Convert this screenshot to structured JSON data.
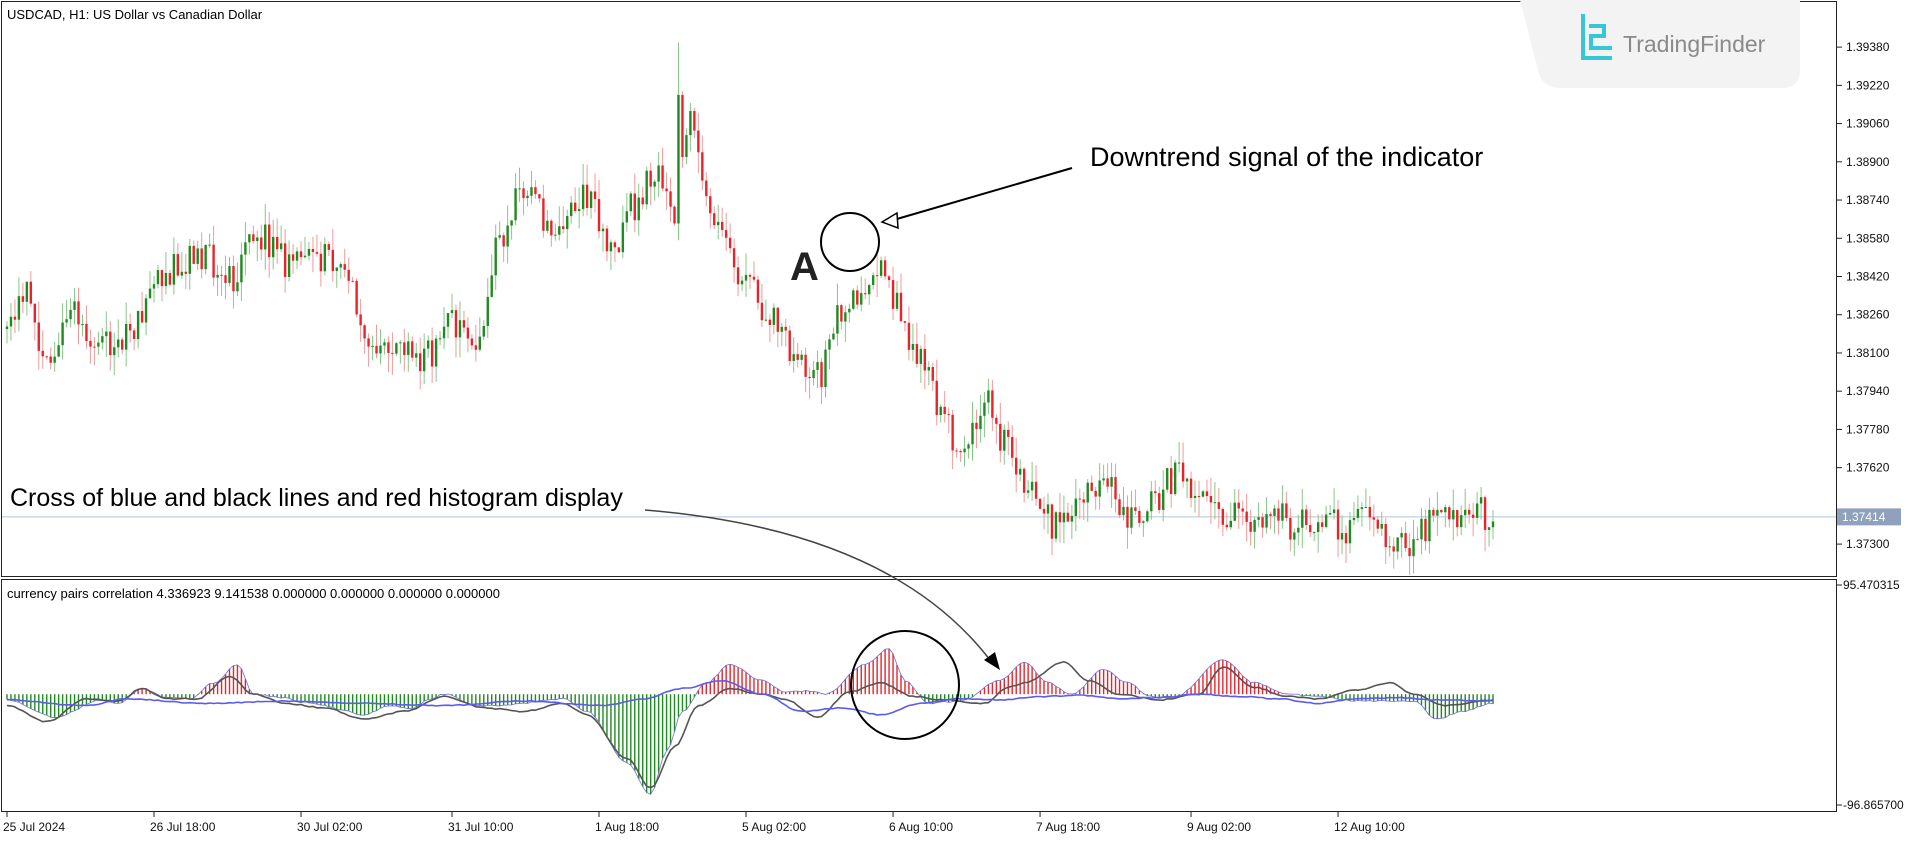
{
  "header": {
    "symbol_title": "USDCAD, H1:  US Dollar vs Canadian Dollar",
    "indicator_title": "currency pairs correlation 4.336923 9.141538 0.000000 0.000000 0.000000 0.000000"
  },
  "brand": {
    "name": "TradingFinder"
  },
  "annotations": {
    "downtrend": "Downtrend signal of the indicator",
    "cross": "Cross of blue and black lines and red histogram display",
    "point_label": "A"
  },
  "colors": {
    "bull": "#1f8a1f",
    "bear": "#e8242a",
    "bull_light": "#86c886",
    "bear_light": "#f29a9a",
    "blue_line": "#5b5bf0",
    "black_line": "#555555",
    "price_line": "#b5c3d6",
    "price_tag_bg": "#8fa1bb",
    "brand_cyan": "#36c6d6"
  },
  "chart_data": [
    {
      "type": "candlestick",
      "symbol": "USDCAD",
      "timeframe": "H1",
      "ylim": [
        1.372,
        1.3946
      ],
      "y_ticks": [
        "1.39380",
        "1.39220",
        "1.39060",
        "1.38900",
        "1.38740",
        "1.38580",
        "1.38420",
        "1.38260",
        "1.38100",
        "1.37940",
        "1.37780",
        "1.37620",
        "1.37300"
      ],
      "current_price": "1.37414",
      "x_tick_labels": [
        "25 Jul 2024",
        "26 Jul 18:00",
        "30 Jul 02:00",
        "31 Jul 10:00",
        "1 Aug 18:00",
        "5 Aug 02:00",
        "6 Aug 10:00",
        "7 Aug 18:00",
        "9 Aug 02:00",
        "12 Aug 10:00"
      ],
      "anchors": [
        [
          0,
          1.382
        ],
        [
          5,
          1.3836
        ],
        [
          10,
          1.3808
        ],
        [
          16,
          1.3826
        ],
        [
          24,
          1.3814
        ],
        [
          32,
          1.382
        ],
        [
          40,
          1.3844
        ],
        [
          48,
          1.3852
        ],
        [
          56,
          1.3842
        ],
        [
          64,
          1.3858
        ],
        [
          72,
          1.3846
        ],
        [
          80,
          1.385
        ],
        [
          86,
          1.3838
        ],
        [
          90,
          1.382
        ],
        [
          96,
          1.3808
        ],
        [
          102,
          1.3808
        ],
        [
          108,
          1.381
        ],
        [
          112,
          1.3822
        ],
        [
          118,
          1.3808
        ],
        [
          124,
          1.3855
        ],
        [
          130,
          1.388
        ],
        [
          138,
          1.3862
        ],
        [
          146,
          1.3876
        ],
        [
          152,
          1.3854
        ],
        [
          158,
          1.3872
        ],
        [
          164,
          1.3888
        ],
        [
          168,
          1.3862
        ],
        [
          172,
          1.3912
        ],
        [
          176,
          1.3876
        ],
        [
          182,
          1.3852
        ],
        [
          186,
          1.3836
        ],
        [
          192,
          1.3828
        ],
        [
          198,
          1.3812
        ],
        [
          204,
          1.38
        ],
        [
          210,
          1.3828
        ],
        [
          216,
          1.384
        ],
        [
          220,
          1.385
        ],
        [
          224,
          1.383
        ],
        [
          230,
          1.3806
        ],
        [
          236,
          1.378
        ],
        [
          240,
          1.3768
        ],
        [
          246,
          1.379
        ],
        [
          252,
          1.377
        ],
        [
          258,
          1.375
        ],
        [
          264,
          1.3738
        ],
        [
          270,
          1.3745
        ],
        [
          276,
          1.376
        ],
        [
          282,
          1.3742
        ],
        [
          288,
          1.3748
        ],
        [
          294,
          1.3758
        ],
        [
          300,
          1.3752
        ],
        [
          306,
          1.3744
        ],
        [
          312,
          1.374
        ],
        [
          318,
          1.3745
        ],
        [
          324,
          1.3738
        ],
        [
          330,
          1.3742
        ],
        [
          336,
          1.3736
        ],
        [
          342,
          1.374
        ],
        [
          348,
          1.3733
        ],
        [
          354,
          1.3728
        ],
        [
          358,
          1.374
        ],
        [
          362,
          1.3744
        ],
        [
          366,
          1.3742
        ],
        [
          370,
          1.3744
        ],
        [
          374,
          1.374
        ]
      ],
      "candle_count": 375
    },
    {
      "type": "histogram_with_lines",
      "name": "currency pairs correlation",
      "ylim": [
        -96.8657,
        95.470315
      ],
      "y_ticks": [
        "95.470315",
        "-96.865700"
      ],
      "histogram_anchors": [
        [
          0,
          -5
        ],
        [
          12,
          -20
        ],
        [
          24,
          -5
        ],
        [
          28,
          -8
        ],
        [
          34,
          5
        ],
        [
          40,
          -3
        ],
        [
          46,
          -4
        ],
        [
          52,
          10
        ],
        [
          58,
          26
        ],
        [
          62,
          0
        ],
        [
          70,
          -3
        ],
        [
          74,
          -7
        ],
        [
          80,
          -10
        ],
        [
          84,
          -14
        ],
        [
          90,
          -18
        ],
        [
          96,
          -10
        ],
        [
          102,
          -13
        ],
        [
          106,
          -5
        ],
        [
          110,
          0
        ],
        [
          118,
          -10
        ],
        [
          125,
          -10
        ],
        [
          130,
          -8
        ],
        [
          136,
          -5
        ],
        [
          140,
          -4
        ],
        [
          146,
          -15
        ],
        [
          156,
          -60
        ],
        [
          162,
          -88
        ],
        [
          166,
          -50
        ],
        [
          170,
          -15
        ],
        [
          176,
          10
        ],
        [
          182,
          26
        ],
        [
          190,
          12
        ],
        [
          196,
          2
        ],
        [
          202,
          3
        ],
        [
          206,
          0
        ],
        [
          216,
          26
        ],
        [
          222,
          40
        ],
        [
          226,
          12
        ],
        [
          232,
          -8
        ],
        [
          240,
          -6
        ],
        [
          250,
          12
        ],
        [
          256,
          28
        ],
        [
          262,
          10
        ],
        [
          268,
          0
        ],
        [
          276,
          22
        ],
        [
          282,
          10
        ],
        [
          288,
          -2
        ],
        [
          294,
          -2
        ],
        [
          306,
          30
        ],
        [
          314,
          10
        ],
        [
          322,
          0
        ],
        [
          330,
          -2
        ],
        [
          340,
          -6
        ],
        [
          354,
          -6
        ],
        [
          360,
          -22
        ],
        [
          366,
          -15
        ],
        [
          374,
          -8
        ]
      ],
      "black_line_anchors": [
        [
          0,
          -10
        ],
        [
          10,
          -24
        ],
        [
          20,
          -4
        ],
        [
          28,
          -6
        ],
        [
          34,
          5
        ],
        [
          40,
          -4
        ],
        [
          48,
          -4
        ],
        [
          56,
          16
        ],
        [
          62,
          0
        ],
        [
          70,
          -8
        ],
        [
          80,
          -12
        ],
        [
          90,
          -22
        ],
        [
          100,
          -15
        ],
        [
          110,
          -2
        ],
        [
          120,
          -12
        ],
        [
          130,
          -15
        ],
        [
          140,
          -8
        ],
        [
          146,
          -18
        ],
        [
          156,
          -56
        ],
        [
          162,
          -82
        ],
        [
          168,
          -46
        ],
        [
          174,
          -10
        ],
        [
          182,
          5
        ],
        [
          190,
          0
        ],
        [
          196,
          -5
        ],
        [
          204,
          -20
        ],
        [
          212,
          2
        ],
        [
          220,
          10
        ],
        [
          228,
          -2
        ],
        [
          236,
          -5
        ],
        [
          246,
          -8
        ],
        [
          252,
          6
        ],
        [
          256,
          10
        ],
        [
          266,
          28
        ],
        [
          272,
          12
        ],
        [
          280,
          0
        ],
        [
          290,
          -5
        ],
        [
          300,
          0
        ],
        [
          306,
          24
        ],
        [
          314,
          6
        ],
        [
          322,
          -2
        ],
        [
          330,
          -4
        ],
        [
          340,
          4
        ],
        [
          348,
          10
        ],
        [
          354,
          0
        ],
        [
          362,
          -10
        ],
        [
          374,
          -5
        ]
      ],
      "blue_line_anchors": [
        [
          0,
          -5
        ],
        [
          20,
          -10
        ],
        [
          30,
          -4
        ],
        [
          50,
          -8
        ],
        [
          70,
          -6
        ],
        [
          90,
          -8
        ],
        [
          110,
          -10
        ],
        [
          130,
          -6
        ],
        [
          150,
          -10
        ],
        [
          160,
          -4
        ],
        [
          170,
          5
        ],
        [
          180,
          12
        ],
        [
          190,
          0
        ],
        [
          200,
          -15
        ],
        [
          210,
          -12
        ],
        [
          220,
          -18
        ],
        [
          230,
          -8
        ],
        [
          240,
          -4
        ],
        [
          250,
          -5
        ],
        [
          260,
          -2
        ],
        [
          270,
          -1
        ],
        [
          280,
          -4
        ],
        [
          290,
          -3
        ],
        [
          300,
          0
        ],
        [
          310,
          -2
        ],
        [
          320,
          -4
        ],
        [
          330,
          -8
        ],
        [
          340,
          -4
        ],
        [
          350,
          -3
        ],
        [
          360,
          -5
        ],
        [
          374,
          -6
        ]
      ]
    }
  ]
}
